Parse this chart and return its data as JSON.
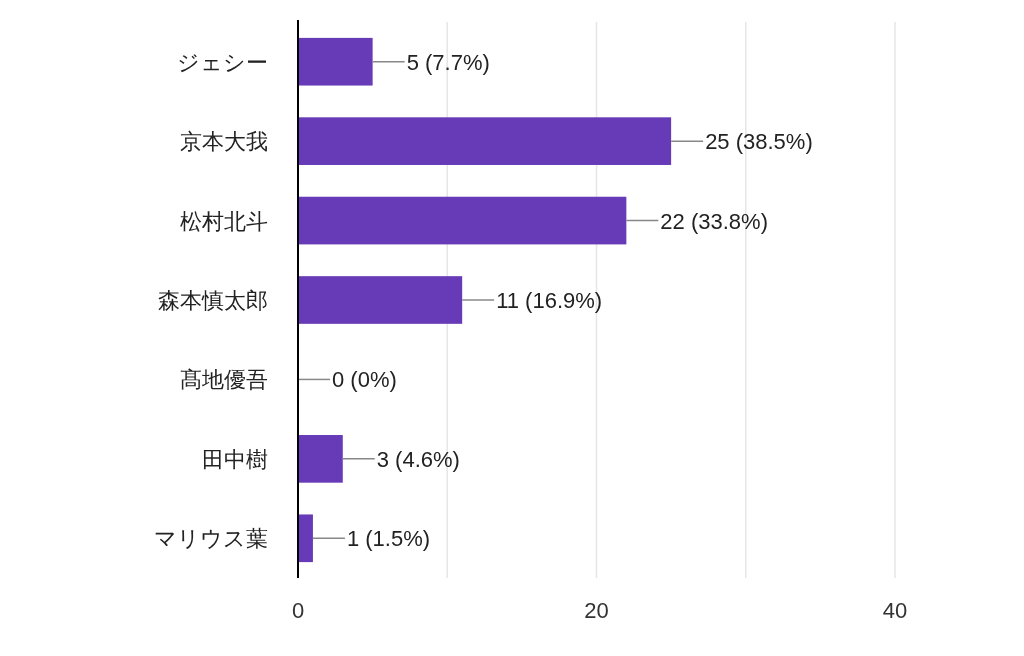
{
  "chart_data": {
    "type": "bar",
    "orientation": "horizontal",
    "categories": [
      "ジェシー",
      "京本大我",
      "松村北斗",
      "森本慎太郎",
      "髙地優吾",
      "田中樹",
      "マリウス葉"
    ],
    "values": [
      5,
      25,
      22,
      11,
      0,
      3,
      1
    ],
    "value_labels": [
      "5 (7.7%)",
      "25 (38.5%)",
      "22 (33.8%)",
      "11 (16.9%)",
      "0 (0%)",
      "3 (4.6%)",
      "1 (1.5%)"
    ],
    "color": "#673ab7",
    "xlim": [
      0,
      40
    ],
    "xticks": [
      0,
      {
        "value": 10,
        "label": null
      },
      20,
      {
        "value": 30,
        "label": null
      },
      40
    ],
    "grid": "x"
  }
}
